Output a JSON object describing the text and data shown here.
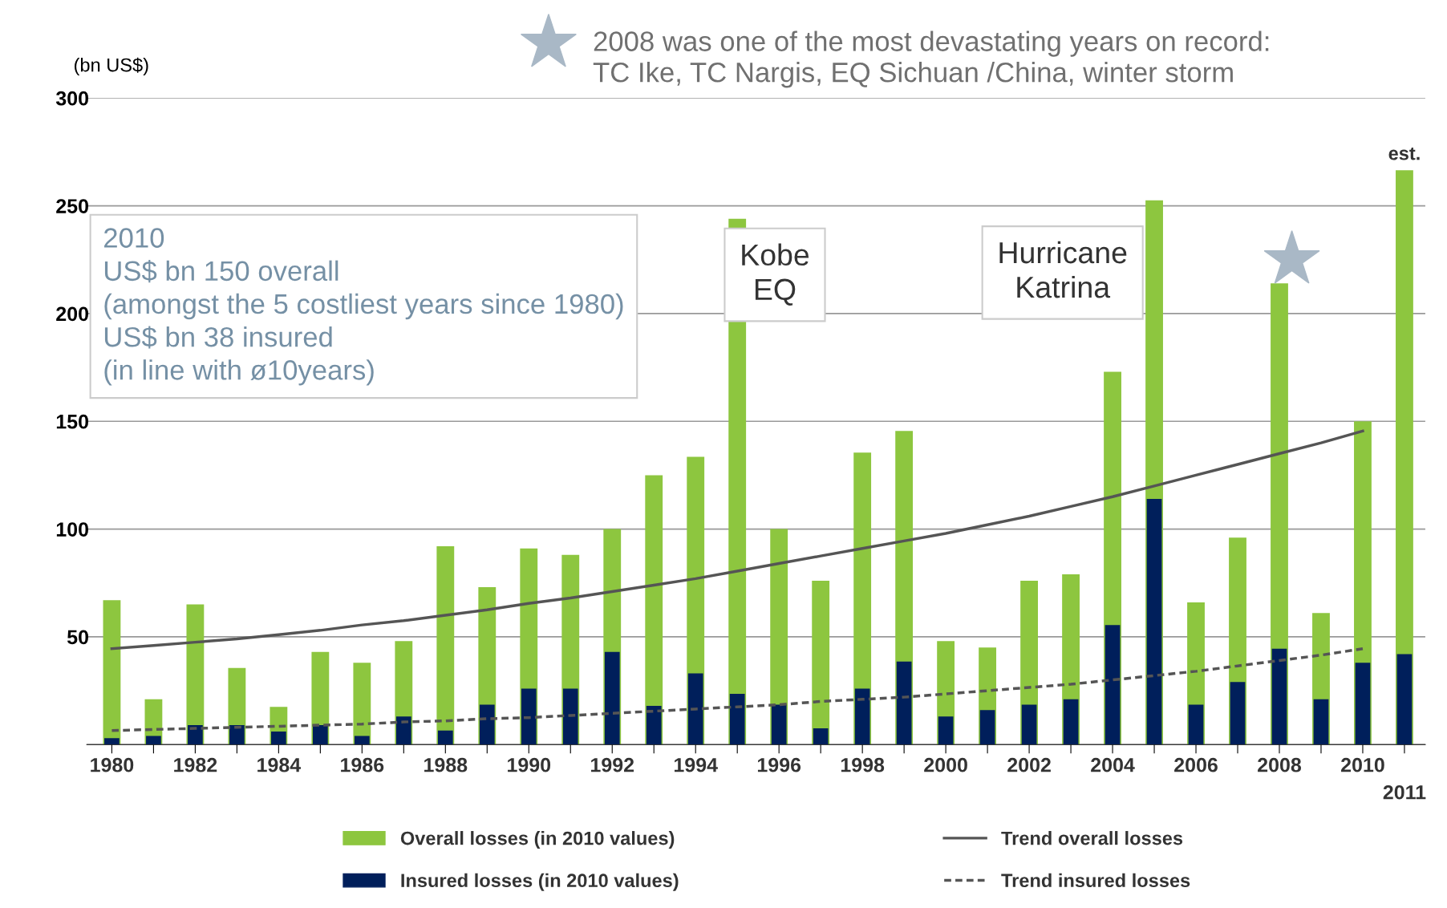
{
  "chart_data": {
    "type": "bar",
    "ylabel": "(bn US$)",
    "categories": [
      "1980",
      null,
      "1982",
      null,
      "1984",
      null,
      "1986",
      null,
      "1988",
      null,
      "1990",
      null,
      "1992",
      null,
      "1994",
      null,
      "1996",
      null,
      "1998",
      null,
      "2000",
      null,
      "2002",
      null,
      "2004",
      null,
      "2006",
      null,
      "2008",
      null,
      "2010",
      "2011"
    ],
    "series": [
      {
        "name": "Overall losses (in 2010 values)",
        "color": "#8dc63f",
        "values": [
          67,
          21,
          65,
          35.5,
          17.5,
          43,
          38,
          48,
          92,
          73,
          91,
          88,
          100,
          125,
          133.5,
          244,
          100,
          76,
          135.5,
          145.5,
          48,
          45,
          76,
          79,
          173,
          252.5,
          66,
          96,
          214,
          61,
          150,
          266.5
        ]
      },
      {
        "name": "Insured losses (in 2010 values)",
        "color": "#001f5b",
        "values": [
          3,
          4,
          9,
          9,
          6,
          9,
          4,
          13,
          6.5,
          18.5,
          26,
          26,
          43,
          18,
          33,
          23.5,
          18.5,
          7.5,
          26,
          38.5,
          13,
          16,
          18.5,
          21,
          55.5,
          114,
          18.5,
          29,
          44.5,
          21,
          38,
          42
        ]
      },
      {
        "name": "Trend overall losses",
        "type": "line",
        "line_style": "solid",
        "color": "#555555",
        "values": [
          44.5,
          46,
          47.5,
          49,
          51,
          53,
          55.5,
          57.5,
          60,
          62.5,
          65.5,
          68,
          71,
          74,
          77,
          80.5,
          84,
          87.5,
          91,
          94.5,
          98,
          102,
          106,
          110.5,
          115,
          120,
          125,
          130,
          135,
          140,
          145.5,
          null
        ]
      },
      {
        "name": "Trend insured losses",
        "type": "line",
        "line_style": "dashed",
        "color": "#555555",
        "values": [
          6.5,
          7,
          7.5,
          8,
          8.5,
          9,
          9.5,
          10.5,
          11,
          12,
          12.5,
          13.5,
          14.5,
          15.5,
          16.5,
          17.5,
          18.5,
          20,
          21,
          22,
          23.5,
          25,
          26.5,
          28,
          30,
          32,
          34,
          36.5,
          39,
          41.5,
          44.5,
          null
        ]
      }
    ],
    "ylim": [
      0,
      300
    ],
    "yticks": [
      {
        "value": 0,
        "label": null
      },
      50,
      100,
      150,
      200,
      250,
      300
    ],
    "grid": "y",
    "legend": "bottom",
    "annotations": [
      "2008 was one of the most devastating years on record:\nTC Ike, TC Nargis, EQ Sichuan /China, winter storm",
      "2010\nUS$ bn 150 overall\n(amongst the 5 costliest years since 1980)\nUS$ bn 38 insured\n(in line with ø10years)",
      "Kobe\nEQ",
      "Hurricane\nKatrina",
      {
        "text": "est.",
        "x": "2011",
        "y": 266.5
      }
    ]
  }
}
